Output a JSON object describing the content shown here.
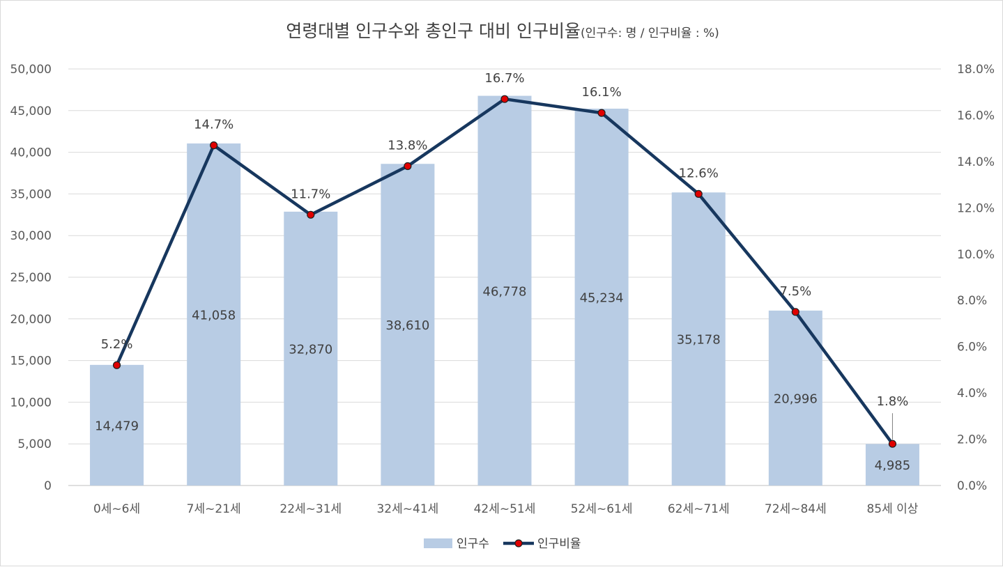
{
  "chart_data": {
    "type": "bar",
    "title": "연령대별 인구수와 총인구 대비 인구비율",
    "subtitle": "(인구수: 명 / 인구비율 : %)",
    "categories": [
      "0세~6세",
      "7세~21세",
      "22세~31세",
      "32세~41세",
      "42세~51세",
      "52세~61세",
      "62세~71세",
      "72세~84세",
      "85세 이상"
    ],
    "series": [
      {
        "name": "인구수",
        "type": "bar",
        "axis": "left",
        "color": "#b8cce4",
        "values": [
          14479,
          41058,
          32870,
          38610,
          46778,
          45234,
          35178,
          20996,
          4985
        ],
        "labels": [
          "14,479",
          "41,058",
          "32,870",
          "38,610",
          "46,778",
          "45,234",
          "35,178",
          "20,996",
          "4,985"
        ]
      },
      {
        "name": "인구비율",
        "type": "line",
        "axis": "right",
        "color": "#17375e",
        "marker_color": "#e00000",
        "values": [
          5.2,
          14.7,
          11.7,
          13.8,
          16.7,
          16.1,
          12.6,
          7.5,
          1.8
        ],
        "labels": [
          "5.2%",
          "14.7%",
          "11.7%",
          "13.8%",
          "16.7%",
          "16.1%",
          "12.6%",
          "7.5%",
          "1.8%"
        ]
      }
    ],
    "y_left": {
      "ylim": [
        0,
        50000
      ],
      "ticks": [
        "0",
        "5,000",
        "10,000",
        "15,000",
        "20,000",
        "25,000",
        "30,000",
        "35,000",
        "40,000",
        "45,000",
        "50,000"
      ]
    },
    "y_right": {
      "ylim": [
        0,
        18
      ],
      "ticks": [
        "0.0%",
        "2.0%",
        "4.0%",
        "6.0%",
        "8.0%",
        "10.0%",
        "12.0%",
        "14.0%",
        "16.0%",
        "18.0%"
      ]
    },
    "grid": true,
    "legend": "bottom",
    "legend_items": [
      "인구수",
      "인구비율"
    ]
  }
}
